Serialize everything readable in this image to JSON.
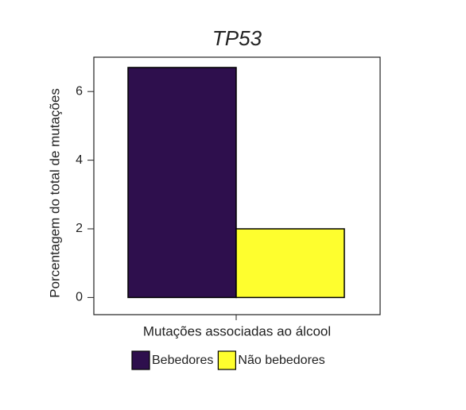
{
  "chart_data": {
    "type": "bar",
    "title": "TP53",
    "x_label": "Mutações associadas ao álcool",
    "y_label": "Porcentagem do total de mutações",
    "categories": [
      null
    ],
    "series": [
      {
        "name": "Bebedores",
        "color": "#2e0f4d",
        "values": [
          6.7
        ]
      },
      {
        "name": "Não bebedores",
        "color": "#fefe2e",
        "values": [
          2.0
        ]
      }
    ],
    "ylim": [
      -0.5,
      7.0
    ],
    "yticks": [
      0,
      2,
      4,
      6
    ],
    "legend": "bottom"
  }
}
